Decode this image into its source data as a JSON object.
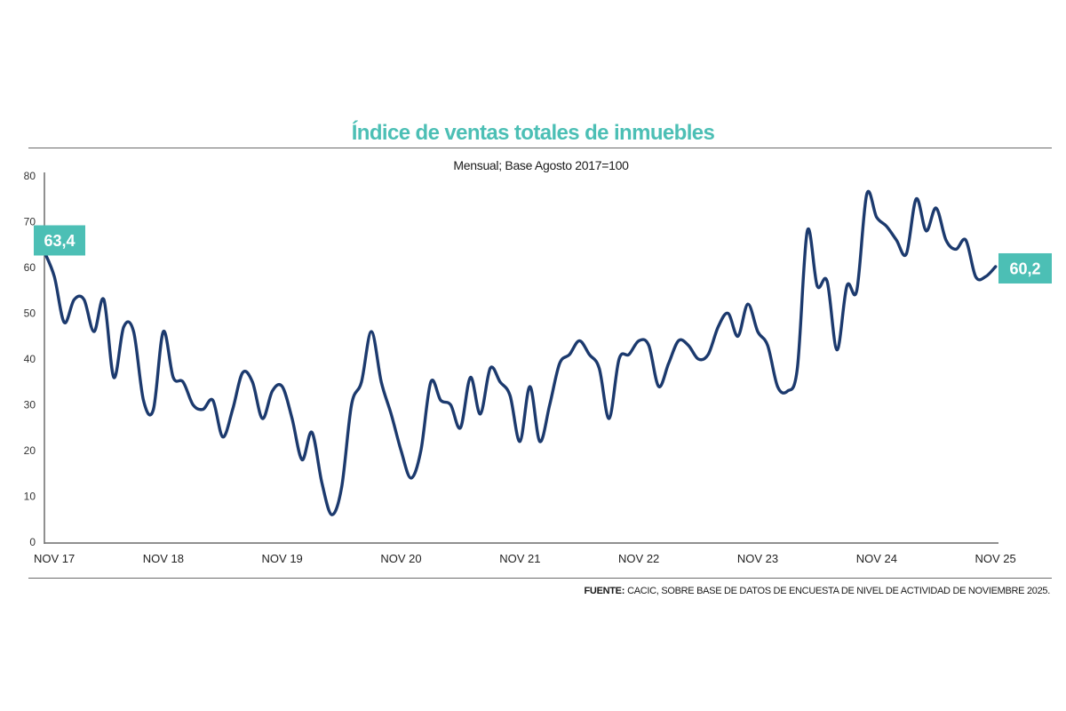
{
  "title": "Índice de ventas totales de inmuebles",
  "subtitle": "Mensual; Base Agosto 2017=100",
  "source": {
    "label": "FUENTE:",
    "text": "CACIC, SOBRE BASE DE DATOS DE ENCUESTA DE NIVEL DE ACTIVIDAD DE NOVIEMBRE 2025."
  },
  "colors": {
    "line": "#1c3a6e",
    "accent": "#4cbfb5",
    "axis": "#6b6b6b"
  },
  "chart_data": {
    "type": "line",
    "x_label_positions": [
      0,
      12,
      24,
      36,
      48,
      60,
      72,
      84,
      96
    ],
    "x_tick_labels": [
      "NOV 17",
      "NOV 18",
      "NOV 19",
      "NOV 20",
      "NOV 21",
      "NOV 22",
      "NOV 23",
      "NOV 24",
      "NOV 25"
    ],
    "y_ticks": [
      0,
      10,
      20,
      30,
      40,
      50,
      60,
      70,
      80
    ],
    "ylim": [
      0,
      80
    ],
    "xlim": [
      0,
      96.3
    ],
    "grid": false,
    "annotations": [
      {
        "label": "63,4",
        "index": 0,
        "value": 63.4,
        "side": "left"
      },
      {
        "label": "60,2",
        "index": 96,
        "value": 60.2,
        "side": "right"
      }
    ],
    "series": [
      {
        "values": [
          63.4,
          58,
          48,
          53,
          53,
          46,
          53,
          36,
          47,
          46,
          31,
          29,
          46,
          36,
          35,
          30,
          29,
          31,
          23,
          29,
          37,
          35,
          27,
          33,
          34,
          27,
          18,
          24,
          13,
          6,
          12,
          30,
          35,
          46,
          35,
          28,
          20,
          14,
          20,
          35,
          31,
          30,
          25,
          36,
          28,
          38,
          35,
          32,
          22,
          34,
          22,
          30,
          39,
          41,
          44,
          41,
          38,
          27,
          40,
          41,
          44,
          43,
          34,
          39,
          44,
          43,
          40,
          41,
          47,
          50,
          45,
          52,
          46,
          43,
          34,
          33,
          38,
          68,
          56,
          57,
          42,
          56,
          55,
          76,
          71,
          69,
          66,
          63,
          75,
          68,
          73,
          66,
          64,
          66,
          58,
          58,
          60.2
        ]
      }
    ]
  }
}
